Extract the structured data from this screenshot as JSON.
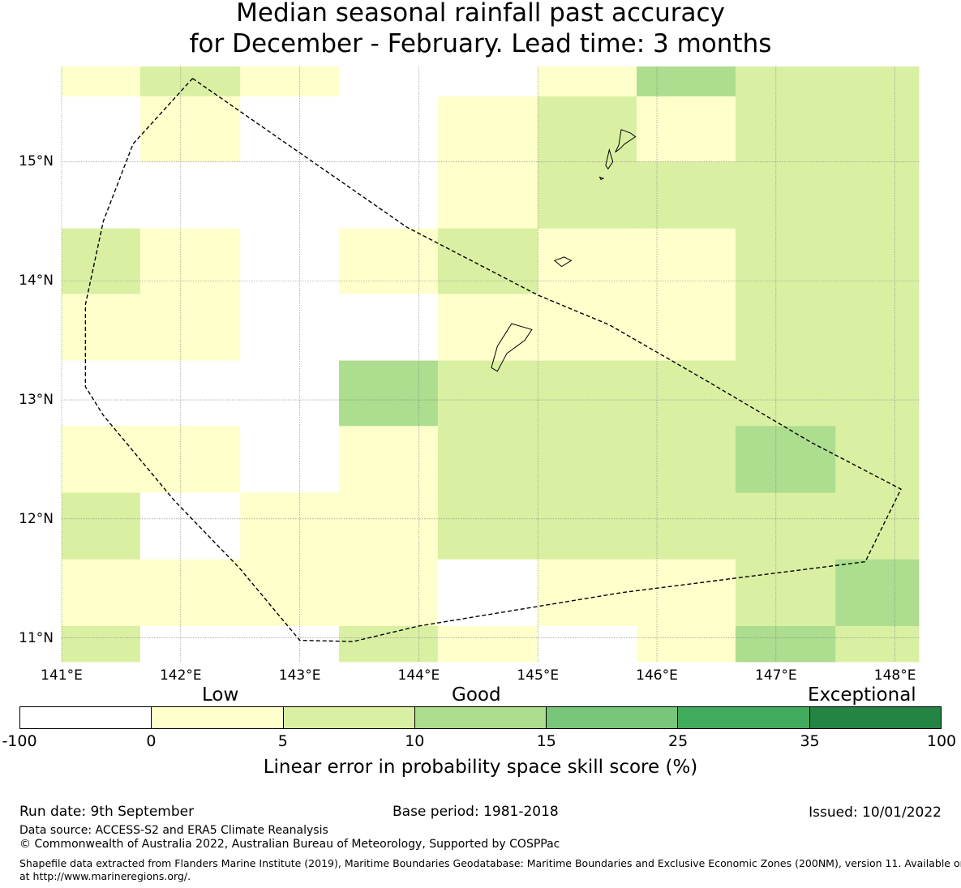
{
  "title": {
    "line1": "Median seasonal rainfall past accuracy",
    "line2": "for December - February. Lead time: 3 months"
  },
  "map": {
    "lon_range": [
      141.0,
      148.2
    ],
    "lat_range": [
      10.8,
      15.8
    ],
    "lon_ticks": [
      "141°E",
      "142°E",
      "143°E",
      "144°E",
      "145°E",
      "146°E",
      "147°E",
      "148°E"
    ],
    "lat_ticks": [
      "15°N",
      "14°N",
      "13°N",
      "12°N",
      "11°N"
    ],
    "grid_lines": true,
    "grid_lon_edges": [
      141.0,
      141.66,
      142.5,
      143.33,
      144.16,
      145.0,
      145.83,
      146.66,
      147.5,
      148.2
    ],
    "grid_lat_edges": [
      10.8,
      11.1,
      11.66,
      12.22,
      12.78,
      13.33,
      13.89,
      14.44,
      15.0,
      15.55,
      15.8
    ],
    "skill_rows_north_to_south": [
      [
        1,
        2,
        1,
        0,
        0,
        1,
        3,
        2,
        2
      ],
      [
        0,
        1,
        0,
        0,
        1,
        2,
        1,
        2,
        2
      ],
      [
        0,
        0,
        0,
        0,
        1,
        2,
        2,
        2,
        2
      ],
      [
        2,
        1,
        0,
        1,
        2,
        1,
        1,
        2,
        2
      ],
      [
        1,
        1,
        0,
        0,
        1,
        1,
        1,
        2,
        2
      ],
      [
        0,
        0,
        0,
        3,
        2,
        2,
        2,
        2,
        2
      ],
      [
        1,
        1,
        0,
        1,
        2,
        2,
        2,
        3,
        2
      ],
      [
        2,
        0,
        1,
        1,
        2,
        2,
        2,
        2,
        2
      ],
      [
        1,
        1,
        1,
        1,
        0,
        1,
        1,
        2,
        3
      ],
      [
        2,
        0,
        0,
        2,
        1,
        0,
        1,
        3,
        2
      ]
    ],
    "boundary_style": "dashed",
    "boundary_lonlat": [
      [
        142.1,
        15.7
      ],
      [
        143.9,
        14.45
      ],
      [
        145.0,
        13.88
      ],
      [
        145.6,
        13.63
      ],
      [
        146.4,
        13.17
      ],
      [
        147.3,
        12.64
      ],
      [
        148.05,
        12.25
      ],
      [
        147.75,
        11.64
      ],
      [
        145.7,
        11.38
      ],
      [
        144.0,
        11.1
      ],
      [
        143.45,
        10.97
      ],
      [
        143.0,
        10.98
      ],
      [
        142.5,
        11.58
      ],
      [
        141.95,
        12.15
      ],
      [
        141.35,
        12.87
      ],
      [
        141.2,
        13.11
      ],
      [
        141.2,
        13.8
      ],
      [
        141.35,
        14.5
      ],
      [
        141.6,
        15.15
      ]
    ],
    "islands_lonlat": [
      [
        [
          145.7,
          15.27
        ],
        [
          145.78,
          15.24
        ],
        [
          145.82,
          15.21
        ],
        [
          145.73,
          15.15
        ],
        [
          145.69,
          15.11
        ],
        [
          145.65,
          15.08
        ],
        [
          145.68,
          15.14
        ],
        [
          145.7,
          15.27
        ]
      ],
      [
        [
          145.6,
          15.1
        ],
        [
          145.63,
          15.0
        ],
        [
          145.59,
          14.94
        ],
        [
          145.57,
          14.97
        ],
        [
          145.6,
          15.1
        ]
      ],
      [
        [
          145.52,
          14.87
        ],
        [
          145.55,
          14.86
        ],
        [
          145.53,
          14.85
        ],
        [
          145.52,
          14.87
        ]
      ],
      [
        [
          145.14,
          14.17
        ],
        [
          145.22,
          14.2
        ],
        [
          145.28,
          14.17
        ],
        [
          145.2,
          14.12
        ],
        [
          145.14,
          14.17
        ]
      ],
      [
        [
          144.78,
          13.64
        ],
        [
          144.95,
          13.59
        ],
        [
          144.89,
          13.5
        ],
        [
          144.74,
          13.39
        ],
        [
          144.66,
          13.24
        ],
        [
          144.61,
          13.27
        ],
        [
          144.66,
          13.45
        ],
        [
          144.78,
          13.64
        ]
      ]
    ]
  },
  "legend": {
    "categories": [
      "Low",
      "Good",
      "Exceptional"
    ],
    "ticks": [
      "-100",
      "0",
      "5",
      "10",
      "15",
      "25",
      "35",
      "100"
    ],
    "colors": [
      "#ffffff",
      "#ffffcc",
      "#d9f0a3",
      "#addd8e",
      "#78c679",
      "#41ab5d",
      "#238443"
    ],
    "label": "Linear error in probability space skill score (%)"
  },
  "footer": {
    "run_date": "Run date: 9th September",
    "base_period": "Base period: 1981-2018",
    "issued": "Issued: 10/01/2022",
    "data_source": "Data source: ACCESS-S2 and ERA5 Climate Reanalysis",
    "copyright": "© Commonwealth of Australia 2022, Australian Bureau of Meteorology, Supported by COSPPac",
    "shapefile_line1": "Shapefile data extracted from Flanders Marine Institute (2019), Maritime Boundaries Geodatabase: Maritime Boundaries and Exclusive Economic Zones (200NM), version 11. Available online",
    "shapefile_line2": "at http://www.marineregions.org/."
  }
}
